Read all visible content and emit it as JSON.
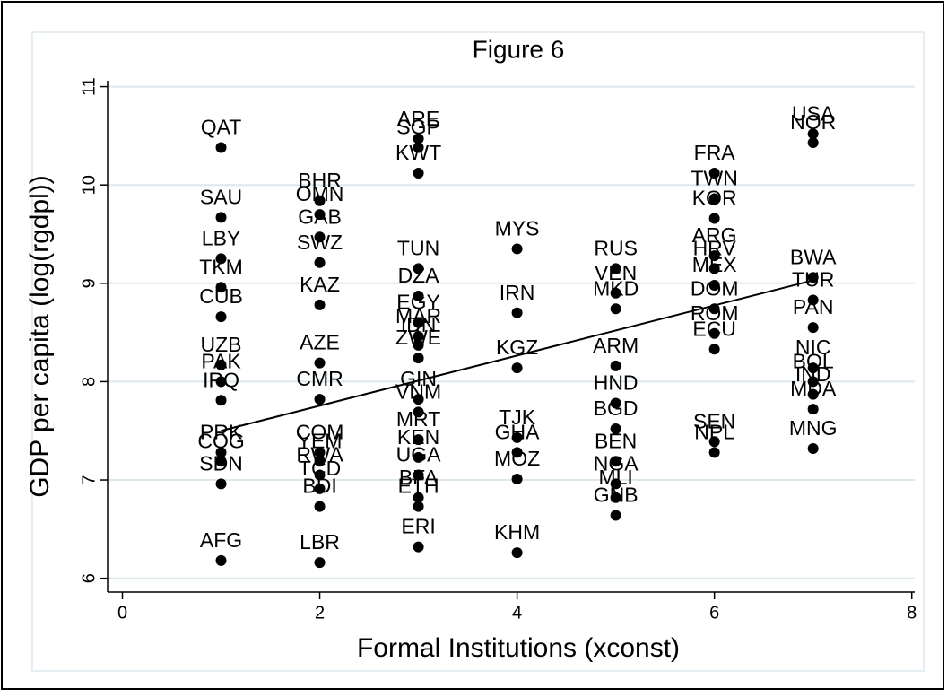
{
  "chart_data": {
    "type": "scatter",
    "title": "Figure 6",
    "x_label": "Formal Institutions (xconst)",
    "y_label": "GDP per capita (log(rgdpl))",
    "xlim": [
      -0.15,
      8.03
    ],
    "ylim": [
      5.86,
      11.06
    ],
    "xticks": [
      0,
      2,
      4,
      6,
      8
    ],
    "yticks": [
      6,
      7,
      8,
      9,
      10,
      11
    ],
    "grid": true,
    "color": "#000000",
    "grid_color": "#dce8ee",
    "point_labels": [
      "QAT",
      "SAU",
      "LBY",
      "TKM",
      "CUB",
      "UZB",
      "PAK",
      "IRQ",
      "PRK",
      "COG",
      "SDN",
      "AFG",
      "BHR",
      "OMN",
      "GAB",
      "SWZ",
      "KAZ",
      "AZE",
      "CMR",
      "COM",
      "YEM",
      "RWA",
      "TCD",
      "BDI",
      "LBR",
      "ARE",
      "SGP",
      "KWT",
      "TUN",
      "DZA",
      "EGY",
      "MAR",
      "IDN",
      "ZWE",
      "GIN",
      "VNM",
      "MRT",
      "KEN",
      "UGA",
      "BFA",
      "ETH",
      "ERI",
      "MYS",
      "IRN",
      "KGZ",
      "TJK",
      "GHA",
      "MOZ",
      "KHM",
      "RUS",
      "VEN",
      "MKD",
      "ARM",
      "HND",
      "BGD",
      "BEN",
      "NGA",
      "MLI",
      "GNB",
      "FRA",
      "TWN",
      "KOR",
      "ARG",
      "HRV",
      "MEX",
      "DOM",
      "ROM",
      "ECU",
      "SEN",
      "NPL",
      "USA",
      "NOR",
      "BWA",
      "TUR",
      "PAN",
      "NIC",
      "BOL",
      "IND",
      "MDA",
      "MNG"
    ],
    "x": [
      1,
      1,
      1,
      1,
      1,
      1,
      1,
      1,
      1,
      1,
      1,
      1,
      2,
      2,
      2,
      2,
      2,
      2,
      2,
      2,
      2,
      2,
      2,
      2,
      2,
      3,
      3,
      3,
      3,
      3,
      3,
      3,
      3,
      3,
      3,
      3,
      3,
      3,
      3,
      3,
      3,
      3,
      4,
      4,
      4,
      4,
      4,
      4,
      4,
      5,
      5,
      5,
      5,
      5,
      5,
      5,
      5,
      5,
      5,
      6,
      6,
      6,
      6,
      6,
      6,
      6,
      6,
      6,
      6,
      6,
      7,
      7,
      7,
      7,
      7,
      7,
      7,
      7,
      7,
      7
    ],
    "values": [
      10.38,
      9.67,
      9.25,
      8.96,
      8.66,
      8.17,
      8.0,
      7.81,
      7.28,
      7.19,
      6.96,
      6.18,
      9.84,
      9.7,
      9.47,
      9.21,
      8.78,
      8.19,
      7.82,
      7.28,
      7.19,
      7.05,
      6.91,
      6.73,
      6.16,
      10.47,
      10.38,
      10.12,
      9.15,
      8.87,
      8.6,
      8.46,
      8.37,
      8.24,
      7.82,
      7.69,
      7.41,
      7.23,
      7.05,
      6.82,
      6.73,
      6.32,
      9.35,
      8.7,
      8.14,
      7.43,
      7.28,
      7.01,
      6.26,
      9.15,
      8.9,
      8.74,
      8.16,
      7.78,
      7.52,
      7.19,
      6.96,
      6.82,
      6.64,
      10.12,
      9.86,
      9.66,
      9.28,
      9.15,
      8.98,
      8.74,
      8.49,
      8.33,
      7.39,
      7.28,
      10.52,
      10.43,
      9.06,
      8.83,
      8.55,
      8.14,
      8.0,
      7.87,
      7.72,
      7.32
    ],
    "fit_line": {
      "x": [
        1,
        7
      ],
      "y": [
        7.5,
        9.03
      ]
    }
  }
}
